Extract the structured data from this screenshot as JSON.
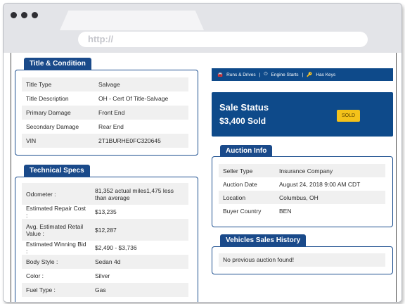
{
  "browser": {
    "url": "http://"
  },
  "title_condition": {
    "heading": "Title & Condition",
    "rows": [
      {
        "label": "Title Type",
        "value": "Salvage"
      },
      {
        "label": "Title Description",
        "value": "OH - Cert Of Title-Salvage"
      },
      {
        "label": "Primary Damage",
        "value": "Front End"
      },
      {
        "label": "Secondary Damage",
        "value": "Rear End"
      },
      {
        "label": "VIN",
        "value": "2T1BURHE0FC320645"
      }
    ]
  },
  "technical_specs": {
    "heading": "Technical Specs",
    "rows": [
      {
        "label": "Odometer :",
        "value": "81,352 actual miles1,475 less than average"
      },
      {
        "label": "Estimated Repair Cost :",
        "value": "$13,235"
      },
      {
        "label": "Avg. Estimated Retail Value :",
        "value": "$12,287"
      },
      {
        "label": "Estimated Winning Bid :",
        "value": "$2,490 - $3,736"
      },
      {
        "label": "Body Style :",
        "value": "Sedan 4d"
      },
      {
        "label": "Color :",
        "value": "Silver"
      },
      {
        "label": "Fuel Type :",
        "value": "Gas"
      }
    ]
  },
  "features": {
    "runs_drives": "Runs & Drives",
    "engine_starts": "Engine Starts",
    "has_keys": "Has Keys",
    "separator": "|"
  },
  "sale_status": {
    "title": "Sale Status",
    "amount": "$3,400 Sold",
    "badge": "SOLD",
    "badge_color": "#f4c21a",
    "accent_color": "#0e4a8a"
  },
  "auction_info": {
    "heading": "Auction Info",
    "rows": [
      {
        "label": "Seller Type",
        "value": "Insurance Company"
      },
      {
        "label": "Auction Date",
        "value": "August 24, 2018 9:00 AM CDT"
      },
      {
        "label": "Location",
        "value": "Columbus, OH"
      },
      {
        "label": "Buyer Country",
        "value": "BEN"
      }
    ]
  },
  "sales_history": {
    "heading": "Vehicles Sales History",
    "message": "No previous auction found!"
  }
}
